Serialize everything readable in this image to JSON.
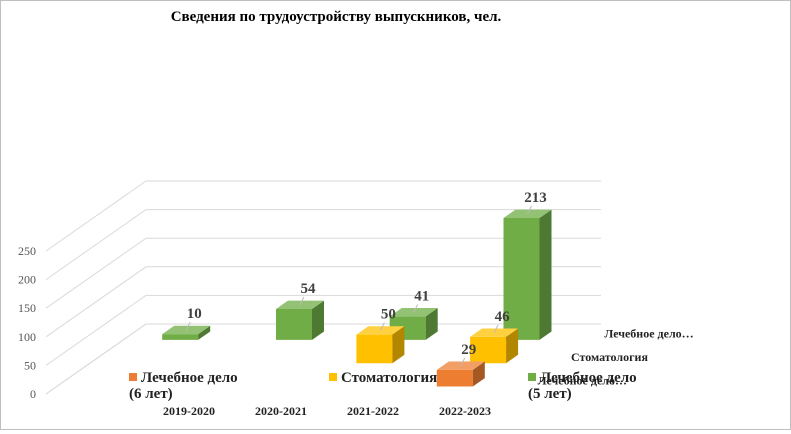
{
  "chart_data": {
    "type": "bar3d",
    "title": "Сведения по трудоустройству  выпускников, чел.",
    "categories": [
      "2019-2020",
      "2020-2021",
      "2021-2022",
      "2022-2023"
    ],
    "series": [
      {
        "name": "Лечебное дело (6 лет)",
        "color": "#ed7d31",
        "values": [
          null,
          null,
          null,
          29
        ]
      },
      {
        "name": "Стоматология",
        "color": "#ffc000",
        "values": [
          null,
          null,
          50,
          46
        ]
      },
      {
        "name": "Лечебное дело (5 лет)",
        "color": "#70ad47",
        "values": [
          10,
          54,
          41,
          213
        ]
      }
    ],
    "series_axis_labels": [
      "Лечебное дело…",
      "Стоматология",
      "Лечебное дело…"
    ],
    "ylim": [
      0,
      250
    ],
    "yticks": [
      0,
      50,
      100,
      150,
      200,
      250
    ],
    "grid": true,
    "legend": "bottom"
  }
}
